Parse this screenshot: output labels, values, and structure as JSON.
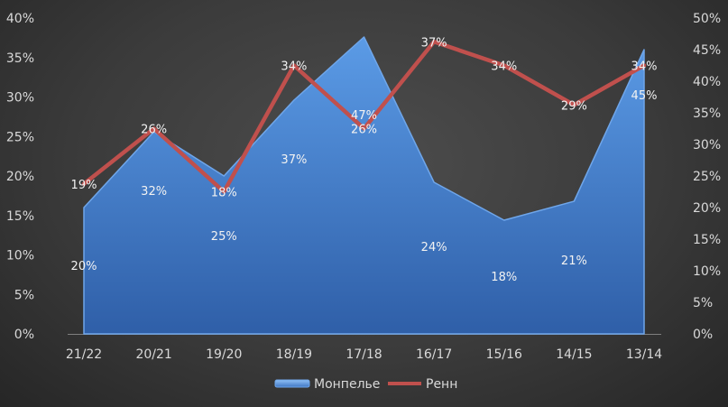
{
  "chart_data": {
    "type": "area",
    "categories": [
      "21/22",
      "20/21",
      "19/20",
      "18/19",
      "17/18",
      "16/17",
      "15/16",
      "14/15",
      "13/14"
    ],
    "series": [
      {
        "name": "Монпелье",
        "kind": "area",
        "axis": "right",
        "values": [
          20,
          32,
          25,
          37,
          47,
          24,
          18,
          21,
          45
        ],
        "labels": [
          "20%",
          "32%",
          "25%",
          "37%",
          "47%",
          "24%",
          "18%",
          "21%",
          "45%"
        ],
        "color": "#4a86d6"
      },
      {
        "name": "Ренн",
        "kind": "line",
        "axis": "left",
        "values": [
          19,
          26,
          18,
          34,
          26,
          37,
          34,
          29,
          34
        ],
        "labels": [
          "19%",
          "26%",
          "18%",
          "34%",
          "26%",
          "37%",
          "34%",
          "29%",
          "34%"
        ],
        "color": "#c0504d"
      }
    ],
    "y_left": {
      "ylim": [
        0,
        40
      ],
      "ticks": [
        "0%",
        "5%",
        "10%",
        "15%",
        "20%",
        "25%",
        "30%",
        "35%",
        "40%"
      ]
    },
    "y_right": {
      "ylim": [
        0,
        50
      ],
      "ticks": [
        "0%",
        "5%",
        "10%",
        "15%",
        "20%",
        "25%",
        "30%",
        "35%",
        "40%",
        "45%",
        "50%"
      ]
    },
    "grid": false,
    "legend": "bottom"
  }
}
